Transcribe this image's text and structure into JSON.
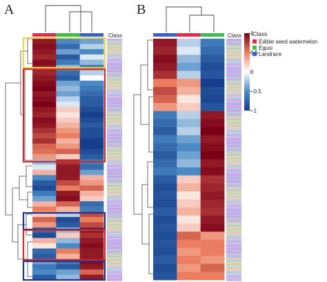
{
  "panels": [
    {
      "letter": "A",
      "class_label": "Class",
      "columns": [
        "Edible seed watermelon",
        "Egusi",
        "Landrace"
      ],
      "rows": [
        [
          0.9,
          -0.5,
          -0.4
        ],
        [
          0.95,
          -0.7,
          -0.2
        ],
        [
          0.9,
          -0.4,
          -0.5
        ],
        [
          0.85,
          -0.8,
          -0.1
        ],
        [
          0.95,
          -0.6,
          -0.3
        ],
        [
          0.9,
          -0.3,
          -0.6
        ],
        [
          0.85,
          -0.7,
          -0.2
        ],
        [
          0.9,
          -0.8,
          0.0
        ],
        [
          0.95,
          -0.4,
          -0.5
        ],
        [
          1.0,
          -0.3,
          -0.6
        ],
        [
          0.9,
          -0.4,
          -0.7
        ],
        [
          0.95,
          -0.2,
          -0.8
        ],
        [
          1.0,
          -0.1,
          -0.8
        ],
        [
          0.9,
          0.2,
          -0.9
        ],
        [
          0.85,
          0.1,
          -1.0
        ],
        [
          0.95,
          0.2,
          -0.9
        ],
        [
          0.9,
          0.3,
          -0.8
        ],
        [
          0.8,
          0.4,
          -0.9
        ],
        [
          0.7,
          0.5,
          -0.9
        ],
        [
          0.8,
          0.3,
          -1.0
        ],
        [
          0.6,
          0.4,
          -1.0
        ],
        [
          0.55,
          0.6,
          -0.9
        ],
        [
          0.4,
          0.2,
          -0.8
        ],
        [
          -0.3,
          0.8,
          -0.6
        ],
        [
          -0.1,
          0.9,
          -0.7
        ],
        [
          0.3,
          0.9,
          -0.4
        ],
        [
          -0.5,
          0.9,
          0.3
        ],
        [
          -0.8,
          0.7,
          0.4
        ],
        [
          -0.9,
          0.5,
          0.6
        ],
        [
          -0.6,
          0.9,
          0.3
        ],
        [
          -0.4,
          0.95,
          0.2
        ],
        [
          0.3,
          0.6,
          -0.7
        ],
        [
          0.5,
          0.3,
          -0.6
        ],
        [
          0.2,
          -0.2,
          0.7
        ],
        [
          0.6,
          -0.9,
          0.5
        ],
        [
          0.4,
          -0.8,
          0.7
        ],
        [
          -0.7,
          -0.3,
          0.9
        ],
        [
          -0.9,
          0.2,
          0.8
        ],
        [
          0.3,
          -0.3,
          0.9
        ],
        [
          0.1,
          -0.5,
          0.95
        ],
        [
          -0.7,
          0.5,
          0.9
        ],
        [
          -0.8,
          0.3,
          0.9
        ],
        [
          -0.4,
          -0.6,
          0.95
        ],
        [
          -0.6,
          -0.8,
          0.9
        ],
        [
          -0.5,
          -0.4,
          0.6
        ],
        [
          -0.8,
          -0.3,
          0.9
        ]
      ]
    },
    {
      "letter": "B",
      "class_label": "Class",
      "columns": [
        "Landrace",
        "Edible seed watermelon",
        "Egusi"
      ],
      "rows": [
        [
          0.9,
          -0.2,
          -0.6
        ],
        [
          0.85,
          -0.1,
          -0.7
        ],
        [
          0.95,
          -0.3,
          -0.8
        ],
        [
          0.9,
          -0.4,
          -0.9
        ],
        [
          0.8,
          -0.2,
          -0.85
        ],
        [
          0.5,
          0.4,
          -1.0
        ],
        [
          0.7,
          0.3,
          -0.9
        ],
        [
          0.6,
          0.1,
          -0.95
        ],
        [
          0.4,
          0.2,
          -0.85
        ],
        [
          -0.6,
          -0.2,
          0.9
        ],
        [
          -0.7,
          -0.3,
          0.95
        ],
        [
          -0.8,
          -0.2,
          1.0
        ],
        [
          -0.6,
          -0.4,
          0.9
        ],
        [
          -0.7,
          -0.5,
          0.95
        ],
        [
          -0.8,
          -0.4,
          1.0
        ],
        [
          -0.7,
          -0.3,
          0.9
        ],
        [
          -0.6,
          -0.5,
          0.95
        ],
        [
          -0.8,
          0.2,
          0.8
        ],
        [
          -0.9,
          0.3,
          0.85
        ],
        [
          -0.85,
          0.1,
          0.9
        ],
        [
          -0.9,
          0.2,
          0.85
        ],
        [
          -0.8,
          0.3,
          0.8
        ],
        [
          -0.9,
          0.1,
          0.9
        ],
        [
          -0.85,
          0.2,
          0.95
        ],
        [
          -0.9,
          0.6,
          0.4
        ],
        [
          -0.85,
          0.5,
          0.5
        ],
        [
          -0.9,
          0.4,
          0.5
        ],
        [
          -0.8,
          0.5,
          0.4
        ],
        [
          -0.9,
          0.4,
          0.6
        ],
        [
          -0.85,
          0.5,
          0.5
        ]
      ]
    }
  ],
  "legend": {
    "title": "Class",
    "items": [
      {
        "label": "Edible seed watermelon",
        "color": "#e8284a"
      },
      {
        "label": "Egusi",
        "color": "#3bbf4a"
      },
      {
        "label": "Landrace",
        "color": "#3a5fd0"
      }
    ]
  },
  "colorbar": {
    "ticks": [
      {
        "value": 1,
        "label": "1"
      },
      {
        "value": 0.5,
        "label": "0.5"
      },
      {
        "value": 0,
        "label": "0"
      },
      {
        "value": -0.5,
        "label": "−0.5"
      },
      {
        "value": -1,
        "label": "−1"
      }
    ],
    "colors": [
      "#173e8c",
      "#4a8ac4",
      "#ffffff",
      "#eb7e5f",
      "#7a0018"
    ]
  },
  "chart_data": [
    {
      "type": "heatmap",
      "title": "A",
      "columns": [
        "Edible seed watermelon",
        "Egusi",
        "Landrace"
      ],
      "value_range": [
        -1,
        1
      ],
      "highlight_boxes": [
        "yellow",
        "red",
        "blue",
        "red",
        "blue"
      ]
    },
    {
      "type": "heatmap",
      "title": "B",
      "columns": [
        "Landrace",
        "Edible seed watermelon",
        "Egusi"
      ],
      "value_range": [
        -1,
        1
      ]
    }
  ],
  "class_palette": [
    "#d9a0e0",
    "#c7a7ea",
    "#a8c8f2",
    "#e9b8e4",
    "#b5e0c0",
    "#f2d39a",
    "#c8c8c8",
    "#9fd2e6"
  ]
}
